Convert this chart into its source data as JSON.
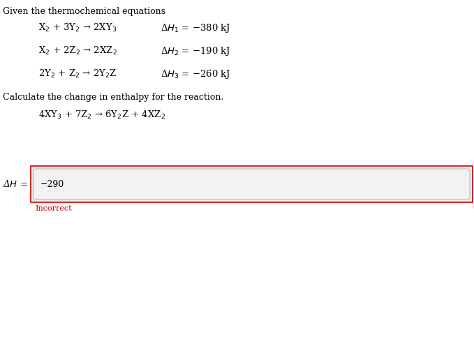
{
  "title_text": "Given the thermochemical equations",
  "eq1_left": "X$_2$ + 3Y$_2$ → 2XY$_3$",
  "eq1_right": "Δ$H_1$ = −380 kJ",
  "eq2_left": "X$_2$ + 2Z$_2$ → 2XZ$_2$",
  "eq2_right": "Δ$H_2$ = −190 kJ",
  "eq3_left": "2Y$_2$ + Z$_2$ → 2Y$_2$Z",
  "eq3_right": "Δ$H_3$ = −260 kJ",
  "calc_text": "Calculate the change in enthalpy for the reaction.",
  "reaction_text": "4XY$_3$ + 7Z$_2$ → 6Y$_2$Z + 4XZ$_2$",
  "dH_label": "Δ$H$ =",
  "answer_value": "−290",
  "incorrect_text": "Incorrect",
  "bg_color": "#ffffff",
  "outer_box_fill": "#ebebeb",
  "outer_box_edge": "#cc0000",
  "inner_box_fill": "#f2f2f2",
  "inner_box_edge": "#bbbbbb",
  "incorrect_color": "#cc0000",
  "text_color": "#000000",
  "font_size_title": 9,
  "font_size_eq": 9.5,
  "font_size_answer": 9,
  "font_size_incorrect": 8
}
